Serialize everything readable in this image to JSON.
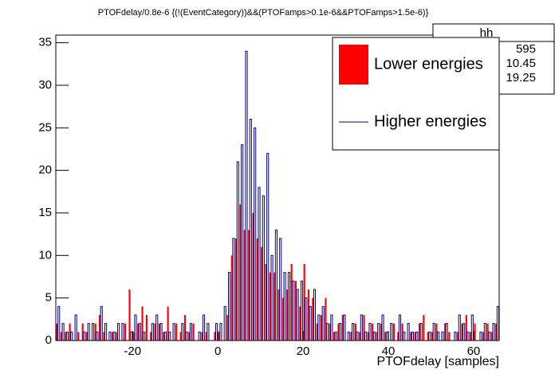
{
  "chart_data": {
    "type": "histogram",
    "title": "PTOFdelay/0.8e-6 {(!(EventCategory))&&(PTOFamps>0.1e-6&&PTOFamps>1.5e-6)}",
    "x_label": "PTOFdelay [samples]",
    "bins": [
      -38,
      -37,
      -36,
      -35,
      -34,
      -33,
      -32,
      -31,
      -30,
      -29,
      -28,
      -27,
      -26,
      -25,
      -24,
      -23,
      -22,
      -21,
      -20,
      -19,
      -18,
      -17,
      -16,
      -15,
      -14,
      -13,
      -12,
      -11,
      -10,
      -9,
      -8,
      -7,
      -6,
      -5,
      -4,
      -3,
      -2,
      -1,
      0,
      1,
      2,
      3,
      4,
      5,
      6,
      7,
      8,
      9,
      10,
      11,
      12,
      13,
      14,
      15,
      16,
      17,
      18,
      19,
      20,
      21,
      22,
      23,
      24,
      25,
      26,
      27,
      28,
      29,
      30,
      31,
      32,
      33,
      34,
      35,
      36,
      37,
      38,
      39,
      40,
      41,
      42,
      43,
      44,
      45,
      46,
      47,
      48,
      49,
      50,
      51,
      52,
      53,
      54,
      55,
      56,
      57,
      58,
      59,
      60,
      61,
      62,
      63,
      64,
      65,
      66
    ],
    "series": [
      {
        "name": "Lower energies",
        "color": "#ff0000",
        "fill": true,
        "values": [
          2,
          1,
          1,
          2,
          0,
          1,
          2,
          1,
          0,
          2,
          3,
          1,
          0,
          1,
          1,
          0,
          2,
          6,
          1,
          2,
          4,
          3,
          1,
          2,
          2,
          1,
          4,
          0,
          2,
          1,
          3,
          1,
          2,
          0,
          1,
          1,
          0,
          1,
          1,
          0,
          3,
          10,
          12,
          16,
          13,
          13,
          15,
          12,
          11,
          9,
          8,
          8,
          6,
          5,
          6,
          9,
          7,
          4,
          9,
          6,
          5,
          2,
          3,
          5,
          2,
          1,
          2,
          3,
          0,
          1,
          2,
          1,
          3,
          1,
          2,
          1,
          2,
          1,
          0,
          2,
          1,
          2,
          0,
          1,
          1,
          2,
          3,
          1,
          1,
          2,
          0,
          2,
          1,
          0,
          1,
          2,
          3,
          1,
          2,
          0,
          1,
          2,
          1,
          2
        ]
      },
      {
        "name": "Higher energies",
        "color": "#000080",
        "fill": false,
        "values": [
          4,
          2,
          1,
          1,
          3,
          0,
          1,
          2,
          2,
          1,
          4,
          2,
          1,
          1,
          2,
          2,
          0,
          1,
          3,
          2,
          1,
          0,
          2,
          3,
          2,
          1,
          1,
          2,
          0,
          2,
          1,
          2,
          0,
          1,
          3,
          2,
          0,
          2,
          2,
          4,
          8,
          12,
          21,
          23,
          34,
          26,
          25,
          18,
          17,
          22,
          10,
          13,
          12,
          8,
          8,
          7,
          6,
          7,
          5,
          4,
          6,
          3,
          4,
          2,
          3,
          1,
          2,
          3,
          1,
          2,
          1,
          3,
          1,
          2,
          1,
          2,
          3,
          1,
          2,
          0,
          3,
          1,
          2,
          1,
          1,
          2,
          0,
          1,
          2,
          1,
          1,
          2,
          0,
          1,
          3,
          2,
          1,
          3,
          0,
          1,
          2,
          1,
          2,
          4
        ]
      }
    ],
    "xlim": [
      -38,
      66
    ],
    "ylim": [
      0,
      35.9
    ],
    "xticks": [
      -20,
      0,
      20,
      40,
      60
    ],
    "yticks": [
      0,
      5,
      10,
      15,
      20,
      25,
      30,
      35
    ],
    "stats": {
      "title": "hh",
      "entries": 595,
      "mean": 10.45,
      "std_dev": 19.25
    }
  }
}
